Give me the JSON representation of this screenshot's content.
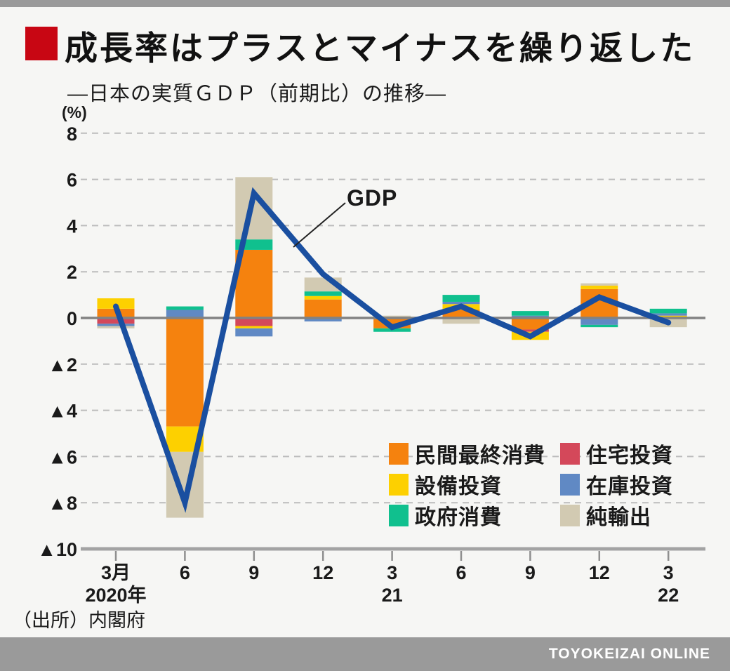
{
  "header": {
    "title": "成長率はプラスとマイナスを繰り返した",
    "subtitle": "―日本の実質ＧＤＰ（前期比）の推移―"
  },
  "footer": {
    "source": "（出所）内閣府",
    "brand": "TOYOKEIZAI ONLINE"
  },
  "colors": {
    "accent_red": "#c80613",
    "page_bg": "#f6f6f4",
    "band_gray": "#9a9a9a",
    "text": "#1a1a1a",
    "gdp_line": "#1a4fa0",
    "zero_line": "#828282",
    "gridline": "#bcbcbc",
    "axis_line": "#a3a3a3",
    "annotation_line": "#222222",
    "series": {
      "民間最終消費": "#f5820e",
      "設備投資": "#fdd000",
      "政府消費": "#10c08e",
      "住宅投資": "#d4485a",
      "在庫投資": "#6089c4",
      "純輸出": "#d2cab2"
    }
  },
  "chart_data": {
    "type": "bar",
    "subtype": "stacked-contribution-bars-with-line",
    "unit_label": "(%)",
    "ylim": [
      -10,
      8
    ],
    "ytick_step": 2,
    "negative_prefix": "▲",
    "grid": "horizontal dashed, solid zero line, solid bottom axis",
    "legend_position": "inside lower right, two columns",
    "categories": [
      "3月",
      "6",
      "9",
      "12",
      "3",
      "6",
      "9",
      "12",
      "3"
    ],
    "year_labels": [
      {
        "index": 0,
        "label": "2020年"
      },
      {
        "index": 4,
        "label": "21"
      },
      {
        "index": 8,
        "label": "22"
      }
    ],
    "series_names": [
      "民間最終消費",
      "設備投資",
      "政府消費",
      "住宅投資",
      "在庫投資",
      "純輸出"
    ],
    "legend_columns": [
      [
        "民間最終消費",
        "設備投資",
        "政府消費"
      ],
      [
        "住宅投資",
        "在庫投資",
        "純輸出"
      ]
    ],
    "bars": [
      {
        "category": "3月 2020年",
        "pos": [
          {
            "series": "民間最終消費",
            "value": 0.4
          },
          {
            "series": "設備投資",
            "value": 0.45
          }
        ],
        "neg": [
          {
            "series": "住宅投資",
            "value": -0.25
          },
          {
            "series": "在庫投資",
            "value": -0.1
          },
          {
            "series": "純輸出",
            "value": -0.1
          }
        ]
      },
      {
        "category": "6月 2020年",
        "pos": [
          {
            "series": "在庫投資",
            "value": 0.35
          },
          {
            "series": "政府消費",
            "value": 0.15
          }
        ],
        "neg": [
          {
            "series": "民間最終消費",
            "value": -4.7
          },
          {
            "series": "設備投資",
            "value": -1.1
          },
          {
            "series": "純輸出",
            "value": -2.85
          }
        ]
      },
      {
        "category": "9月 2020年",
        "pos": [
          {
            "series": "民間最終消費",
            "value": 2.95
          },
          {
            "series": "政府消費",
            "value": 0.45
          },
          {
            "series": "純輸出",
            "value": 2.7
          }
        ],
        "neg": [
          {
            "series": "住宅投資",
            "value": -0.35
          },
          {
            "series": "設備投資",
            "value": -0.1
          },
          {
            "series": "在庫投資",
            "value": -0.35
          }
        ]
      },
      {
        "category": "12月 2020年",
        "pos": [
          {
            "series": "民間最終消費",
            "value": 0.8
          },
          {
            "series": "設備投資",
            "value": 0.15
          },
          {
            "series": "政府消費",
            "value": 0.2
          },
          {
            "series": "純輸出",
            "value": 0.6
          }
        ],
        "neg": [
          {
            "series": "在庫投資",
            "value": -0.15
          }
        ]
      },
      {
        "category": "3月 2021年",
        "pos": [
          {
            "series": "純輸出",
            "value": 0.1
          }
        ],
        "neg": [
          {
            "series": "民間最終消費",
            "value": -0.45
          },
          {
            "series": "政府消費",
            "value": -0.15
          }
        ]
      },
      {
        "category": "6月 2021年",
        "pos": [
          {
            "series": "民間最終消費",
            "value": 0.35
          },
          {
            "series": "設備投資",
            "value": 0.25
          },
          {
            "series": "在庫投資",
            "value": 0.1
          },
          {
            "series": "政府消費",
            "value": 0.3
          }
        ],
        "neg": [
          {
            "series": "純輸出",
            "value": -0.25
          }
        ]
      },
      {
        "category": "9月 2021年",
        "pos": [
          {
            "series": "在庫投資",
            "value": 0.1
          },
          {
            "series": "政府消費",
            "value": 0.2
          }
        ],
        "neg": [
          {
            "series": "民間最終消費",
            "value": -0.5
          },
          {
            "series": "住宅投資",
            "value": -0.1
          },
          {
            "series": "設備投資",
            "value": -0.35
          }
        ]
      },
      {
        "category": "12月 2021年",
        "pos": [
          {
            "series": "民間最終消費",
            "value": 1.25
          },
          {
            "series": "設備投資",
            "value": 0.15
          },
          {
            "series": "純輸出",
            "value": 0.1
          }
        ],
        "neg": [
          {
            "series": "在庫投資",
            "value": -0.3
          },
          {
            "series": "政府消費",
            "value": -0.1
          }
        ]
      },
      {
        "category": "3月 2022年",
        "pos": [
          {
            "series": "設備投資",
            "value": 0.1
          },
          {
            "series": "在庫投資",
            "value": 0.1
          },
          {
            "series": "政府消費",
            "value": 0.2
          }
        ],
        "neg": [
          {
            "series": "純輸出",
            "value": -0.4
          }
        ]
      }
    ],
    "line": {
      "label": "GDP",
      "values": [
        0.5,
        -8.0,
        5.4,
        1.9,
        -0.4,
        0.5,
        -0.8,
        0.9,
        -0.2
      ]
    }
  }
}
